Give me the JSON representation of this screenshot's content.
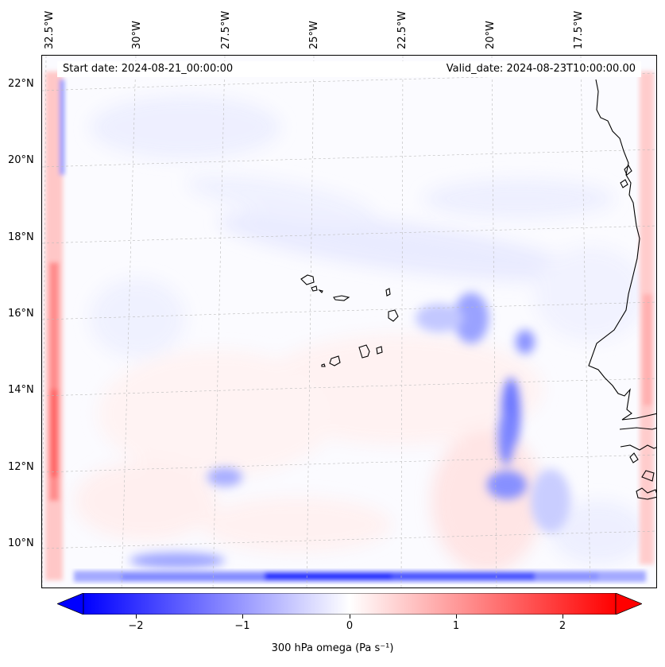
{
  "map": {
    "start_label": "Start date: 2024-08-21_00:00:00",
    "valid_label": "Valid_date: 2024-08-23T10:00:00.00",
    "longitude_labels": [
      "32.5°W",
      "30°W",
      "27.5°W",
      "25°W",
      "22.5°W",
      "20°W",
      "17.5°W"
    ],
    "latitude_labels": [
      "22°N",
      "20°N",
      "18°N",
      "16°N",
      "14°N",
      "12°N",
      "10°N"
    ],
    "colors": {
      "negative": "#0000ff",
      "zero": "#ffffff",
      "positive": "#ff0000",
      "coastline": "#000000",
      "grid": "#bbbbbb"
    }
  },
  "colorbar": {
    "title": "300 hPa omega (Pa s⁻¹)",
    "ticks": [
      "−2",
      "−1",
      "0",
      "1",
      "2"
    ],
    "range": [
      -2.5,
      2.5
    ],
    "extend": "both"
  }
}
